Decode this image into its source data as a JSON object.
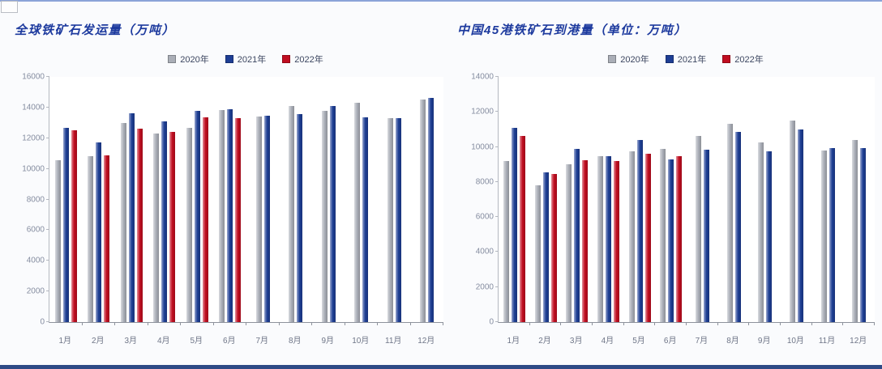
{
  "page": {
    "background_color": "#fafbfd",
    "top_line_color": "#8ba3d8",
    "bottom_line_color": "#2e4a86",
    "title_color": "#1d3a9e"
  },
  "chart_data": [
    {
      "type": "bar",
      "title": "全球铁矿石发运量（万吨）",
      "categories": [
        "1月",
        "2月",
        "3月",
        "4月",
        "5月",
        "6月",
        "7月",
        "8月",
        "9月",
        "10月",
        "11月",
        "12月"
      ],
      "series": [
        {
          "name": "2020年",
          "color": "#aaaeb7",
          "values": [
            10550,
            10800,
            13000,
            12300,
            12650,
            13850,
            13400,
            14100,
            13800,
            14300,
            13300,
            14500
          ]
        },
        {
          "name": "2021年",
          "color": "#1e3e94",
          "values": [
            12700,
            11700,
            13650,
            13100,
            13800,
            13900,
            13450,
            13550,
            14100,
            13350,
            13300,
            14650
          ]
        },
        {
          "name": "2022年",
          "color": "#c00d20",
          "values": [
            12500,
            10900,
            12600,
            12400,
            13350,
            13300,
            null,
            null,
            null,
            null,
            null,
            null
          ]
        }
      ],
      "ylabel": "万吨",
      "ylim": [
        0,
        16000
      ],
      "ytick_step": 2000,
      "grid": false,
      "legend_position": "top-center"
    },
    {
      "type": "bar",
      "title": "中国45港铁矿石到港量（单位：万吨）",
      "categories": [
        "1月",
        "2月",
        "3月",
        "4月",
        "5月",
        "6月",
        "7月",
        "8月",
        "9月",
        "10月",
        "11月",
        "12月"
      ],
      "series": [
        {
          "name": "2020年",
          "color": "#aaaeb7",
          "values": [
            9200,
            7800,
            9000,
            9450,
            9750,
            9900,
            10650,
            11300,
            10250,
            11500,
            9800,
            10400
          ]
        },
        {
          "name": "2021年",
          "color": "#1e3e94",
          "values": [
            11100,
            8550,
            9900,
            9450,
            10400,
            9300,
            9850,
            10880,
            9750,
            11000,
            9950,
            9950
          ]
        },
        {
          "name": "2022年",
          "color": "#c00d20",
          "values": [
            10650,
            8450,
            9250,
            9200,
            9600,
            9480,
            null,
            null,
            null,
            null,
            null,
            null
          ]
        }
      ],
      "ylabel": "万吨",
      "ylim": [
        0,
        14000
      ],
      "ytick_step": 2000,
      "grid": false,
      "legend_position": "top-center"
    }
  ]
}
